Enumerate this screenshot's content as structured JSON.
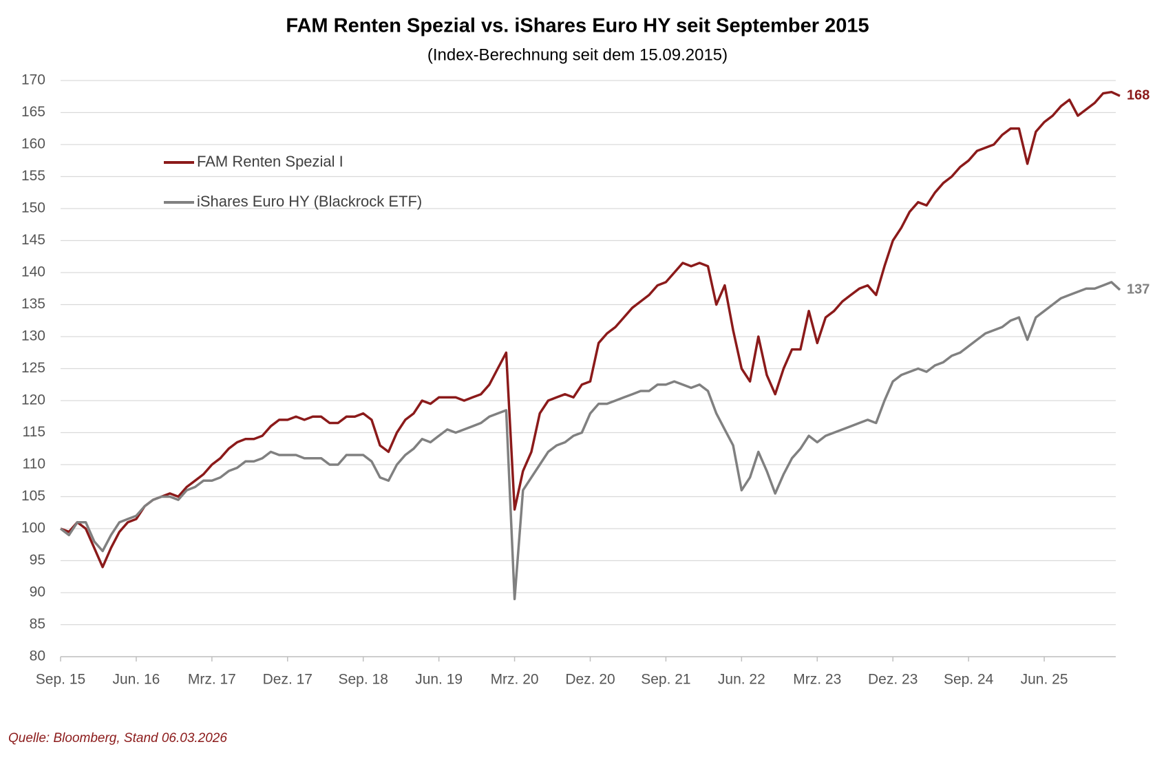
{
  "chart_data": {
    "type": "line",
    "title": "FAM Renten Spezial vs. iShares Euro HY seit September 2015",
    "subtitle": "(Index-Berechnung seit dem 15.09.2015)",
    "source": "Quelle: Bloomberg, Stand 06.03.2026",
    "categories": [
      "Sep. 15",
      null,
      null,
      null,
      null,
      null,
      null,
      null,
      null,
      "Jun. 16",
      null,
      null,
      null,
      null,
      null,
      null,
      null,
      null,
      "Mrz. 17",
      null,
      null,
      null,
      null,
      null,
      null,
      null,
      null,
      "Dez. 17",
      null,
      null,
      null,
      null,
      null,
      null,
      null,
      null,
      "Sep. 18",
      null,
      null,
      null,
      null,
      null,
      null,
      null,
      null,
      "Jun. 19",
      null,
      null,
      null,
      null,
      null,
      null,
      null,
      null,
      "Mrz. 20",
      null,
      null,
      null,
      null,
      null,
      null,
      null,
      null,
      "Dez. 20",
      null,
      null,
      null,
      null,
      null,
      null,
      null,
      null,
      "Sep. 21",
      null,
      null,
      null,
      null,
      null,
      null,
      null,
      null,
      "Jun. 22",
      null,
      null,
      null,
      null,
      null,
      null,
      null,
      null,
      "Mrz. 23",
      null,
      null,
      null,
      null,
      null,
      null,
      null,
      null,
      "Dez. 23",
      null,
      null,
      null,
      null,
      null,
      null,
      null,
      null,
      "Sep. 24",
      null,
      null,
      null,
      null,
      null,
      null,
      null,
      null,
      "Jun. 25",
      null,
      null,
      null,
      null,
      null,
      null,
      null,
      null,
      null
    ],
    "series": [
      {
        "name": "FAM Renten Spezial I",
        "color": "#8b1a1a",
        "values": [
          100,
          99.5,
          101,
          100,
          97,
          94,
          97,
          99.5,
          101,
          101.5,
          103.5,
          104.5,
          105,
          105.5,
          105,
          106.5,
          107.5,
          108.5,
          110,
          111,
          112.5,
          113.5,
          114,
          114,
          114.5,
          116,
          117,
          117,
          117.5,
          117,
          117.5,
          117.5,
          116.5,
          116.5,
          117.5,
          117.5,
          118,
          117,
          113,
          112,
          115,
          117,
          118,
          120,
          119.5,
          120.5,
          120.5,
          120.5,
          120,
          120.5,
          121,
          122.5,
          125,
          127.5,
          103,
          109,
          112,
          118,
          120,
          120.5,
          121,
          120.5,
          122.5,
          123,
          129,
          130.5,
          131.5,
          133,
          134.5,
          135.5,
          136.5,
          138,
          138.5,
          140,
          141.5,
          141,
          141.5,
          141,
          135,
          138,
          131,
          125,
          123,
          130,
          124,
          121,
          125,
          128,
          128,
          134,
          129,
          133,
          134,
          135.5,
          136.5,
          137.5,
          138,
          136.5,
          141,
          145,
          147,
          149.5,
          151,
          150.5,
          152.5,
          154,
          155,
          156.5,
          157.5,
          159,
          159.5,
          160,
          161.5,
          162.5,
          162.5,
          157,
          162,
          163.5,
          164.5,
          166,
          167,
          164.5,
          165.5,
          166.5,
          168,
          168.2,
          167.6
        ],
        "value_labels": [
          null,
          null,
          null,
          null,
          null,
          null,
          null,
          null,
          null,
          null,
          null,
          null,
          null,
          null,
          null,
          null,
          null,
          null,
          null,
          null,
          null,
          null,
          null,
          null,
          null,
          null,
          null,
          null,
          null,
          null,
          null,
          null,
          null,
          null,
          null,
          null,
          null,
          null,
          null,
          null,
          null,
          null,
          null,
          null,
          null,
          null,
          null,
          null,
          null,
          null,
          null,
          null,
          null,
          null,
          null,
          null,
          null,
          null,
          null,
          null,
          null,
          null,
          null,
          null,
          null,
          null,
          null,
          null,
          null,
          null,
          null,
          null,
          null,
          null,
          null,
          null,
          null,
          null,
          null,
          null,
          null,
          null,
          null,
          null,
          null,
          null,
          null,
          null,
          null,
          null,
          null,
          null,
          null,
          null,
          null,
          null,
          null,
          null,
          null,
          null,
          null,
          null,
          null,
          null,
          null,
          null,
          null,
          null,
          null,
          null,
          null,
          null,
          null,
          null,
          null,
          null,
          null,
          null,
          null,
          null,
          null,
          null,
          null,
          null,
          null,
          null,
          "168"
        ]
      },
      {
        "name": "iShares Euro HY (Blackrock ETF)",
        "color": "#808080",
        "values": [
          100,
          99,
          101,
          101,
          98,
          96.5,
          99,
          101,
          101.5,
          102,
          103.5,
          104.5,
          105,
          105,
          104.5,
          106,
          106.5,
          107.5,
          107.5,
          108,
          109,
          109.5,
          110.5,
          110.5,
          111,
          112,
          111.5,
          111.5,
          111.5,
          111,
          111,
          111,
          110,
          110,
          111.5,
          111.5,
          111.5,
          110.5,
          108,
          107.5,
          110,
          111.5,
          112.5,
          114,
          113.5,
          114.5,
          115.5,
          115,
          115.5,
          116,
          116.5,
          117.5,
          118,
          118.5,
          89,
          106,
          108,
          110,
          112,
          113,
          113.5,
          114.5,
          115,
          118,
          119.5,
          119.5,
          120,
          120.5,
          121,
          121.5,
          121.5,
          122.5,
          122.5,
          123,
          122.5,
          122,
          122.5,
          121.5,
          118,
          115.5,
          113,
          106,
          108,
          112,
          109,
          105.5,
          108.5,
          111,
          112.5,
          114.5,
          113.5,
          114.5,
          115,
          115.5,
          116,
          116.5,
          117,
          116.5,
          120,
          123,
          124,
          124.5,
          125,
          124.5,
          125.5,
          126,
          127,
          127.5,
          128.5,
          129.5,
          130.5,
          131,
          131.5,
          132.5,
          133,
          129.5,
          133,
          134,
          135,
          136,
          136.5,
          137,
          137.5,
          137.5,
          138,
          138.5,
          137.3
        ],
        "value_labels": [
          null,
          null,
          null,
          null,
          null,
          null,
          null,
          null,
          null,
          null,
          null,
          null,
          null,
          null,
          null,
          null,
          null,
          null,
          null,
          null,
          null,
          null,
          null,
          null,
          null,
          null,
          null,
          null,
          null,
          null,
          null,
          null,
          null,
          null,
          null,
          null,
          null,
          null,
          null,
          null,
          null,
          null,
          null,
          null,
          null,
          null,
          null,
          null,
          null,
          null,
          null,
          null,
          null,
          null,
          null,
          null,
          null,
          null,
          null,
          null,
          null,
          null,
          null,
          null,
          null,
          null,
          null,
          null,
          null,
          null,
          null,
          null,
          null,
          null,
          null,
          null,
          null,
          null,
          null,
          null,
          null,
          null,
          null,
          null,
          null,
          null,
          null,
          null,
          null,
          null,
          null,
          null,
          null,
          null,
          null,
          null,
          null,
          null,
          null,
          null,
          null,
          null,
          null,
          null,
          null,
          null,
          null,
          null,
          null,
          null,
          null,
          null,
          null,
          null,
          null,
          null,
          null,
          null,
          null,
          null,
          null,
          null,
          null,
          null,
          null,
          null,
          "137"
        ]
      }
    ],
    "ylim": [
      80,
      170
    ],
    "yticks": [
      80,
      85,
      90,
      95,
      100,
      105,
      110,
      115,
      120,
      125,
      130,
      135,
      140,
      145,
      150,
      155,
      160,
      165,
      170
    ],
    "grid": true,
    "legend": "upper left"
  }
}
